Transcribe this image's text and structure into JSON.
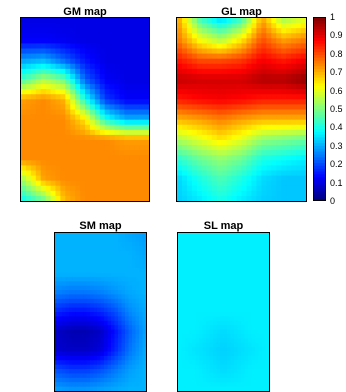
{
  "chart_data": [
    {
      "type": "heatmap",
      "title": "GM map",
      "colormap": "jet",
      "clim": [
        0,
        1
      ],
      "grid_rows": 10,
      "grid_cols": 7,
      "values": [
        [
          0.1,
          0.1,
          0.1,
          0.1,
          0.1,
          0.1,
          0.1
        ],
        [
          0.12,
          0.12,
          0.11,
          0.1,
          0.1,
          0.1,
          0.1
        ],
        [
          0.28,
          0.3,
          0.22,
          0.14,
          0.1,
          0.1,
          0.1
        ],
        [
          0.45,
          0.55,
          0.48,
          0.22,
          0.12,
          0.1,
          0.1
        ],
        [
          0.72,
          0.74,
          0.7,
          0.4,
          0.18,
          0.12,
          0.12
        ],
        [
          0.74,
          0.74,
          0.74,
          0.65,
          0.4,
          0.3,
          0.3
        ],
        [
          0.74,
          0.74,
          0.74,
          0.74,
          0.74,
          0.72,
          0.72
        ],
        [
          0.74,
          0.74,
          0.74,
          0.74,
          0.74,
          0.74,
          0.74
        ],
        [
          0.55,
          0.72,
          0.74,
          0.74,
          0.74,
          0.74,
          0.74
        ],
        [
          0.4,
          0.5,
          0.7,
          0.74,
          0.74,
          0.74,
          0.74
        ]
      ]
    },
    {
      "type": "heatmap",
      "title": "GL map",
      "colormap": "jet",
      "clim": [
        0,
        1
      ],
      "grid_rows": 10,
      "grid_cols": 7,
      "values": [
        [
          0.7,
          0.45,
          0.35,
          0.45,
          0.72,
          0.55,
          0.6
        ],
        [
          0.75,
          0.62,
          0.55,
          0.65,
          0.8,
          0.72,
          0.75
        ],
        [
          0.85,
          0.8,
          0.8,
          0.82,
          0.88,
          0.85,
          0.88
        ],
        [
          0.93,
          0.92,
          0.92,
          0.92,
          0.95,
          0.95,
          0.98
        ],
        [
          0.85,
          0.87,
          0.88,
          0.87,
          0.85,
          0.85,
          0.85
        ],
        [
          0.7,
          0.72,
          0.75,
          0.72,
          0.7,
          0.7,
          0.7
        ],
        [
          0.55,
          0.6,
          0.65,
          0.6,
          0.52,
          0.5,
          0.48
        ],
        [
          0.42,
          0.48,
          0.52,
          0.48,
          0.4,
          0.38,
          0.36
        ],
        [
          0.34,
          0.4,
          0.45,
          0.4,
          0.34,
          0.32,
          0.32
        ],
        [
          0.33,
          0.36,
          0.4,
          0.36,
          0.33,
          0.32,
          0.32
        ]
      ]
    },
    {
      "type": "heatmap",
      "title": "SM map",
      "colormap": "jet",
      "clim": [
        0,
        1
      ],
      "grid_rows": 9,
      "grid_cols": 7,
      "values": [
        [
          0.3,
          0.3,
          0.3,
          0.3,
          0.3,
          0.29,
          0.28
        ],
        [
          0.3,
          0.3,
          0.3,
          0.3,
          0.3,
          0.3,
          0.29
        ],
        [
          0.3,
          0.3,
          0.3,
          0.3,
          0.3,
          0.3,
          0.3
        ],
        [
          0.25,
          0.24,
          0.24,
          0.25,
          0.27,
          0.29,
          0.3
        ],
        [
          0.16,
          0.14,
          0.14,
          0.16,
          0.2,
          0.26,
          0.29
        ],
        [
          0.07,
          0.05,
          0.05,
          0.07,
          0.14,
          0.22,
          0.28
        ],
        [
          0.08,
          0.07,
          0.07,
          0.09,
          0.16,
          0.24,
          0.29
        ],
        [
          0.2,
          0.18,
          0.18,
          0.2,
          0.24,
          0.28,
          0.3
        ],
        [
          0.28,
          0.27,
          0.27,
          0.28,
          0.29,
          0.3,
          0.3
        ]
      ]
    },
    {
      "type": "heatmap",
      "title": "SL map",
      "colormap": "jet",
      "clim": [
        0,
        1
      ],
      "grid_rows": 9,
      "grid_cols": 7,
      "values": [
        [
          0.36,
          0.36,
          0.36,
          0.36,
          0.36,
          0.36,
          0.36
        ],
        [
          0.36,
          0.36,
          0.36,
          0.36,
          0.36,
          0.36,
          0.36
        ],
        [
          0.36,
          0.36,
          0.36,
          0.36,
          0.36,
          0.36,
          0.36
        ],
        [
          0.36,
          0.36,
          0.36,
          0.36,
          0.36,
          0.36,
          0.36
        ],
        [
          0.36,
          0.36,
          0.36,
          0.36,
          0.36,
          0.36,
          0.36
        ],
        [
          0.36,
          0.36,
          0.35,
          0.34,
          0.35,
          0.36,
          0.36
        ],
        [
          0.36,
          0.35,
          0.34,
          0.33,
          0.34,
          0.35,
          0.36
        ],
        [
          0.36,
          0.36,
          0.35,
          0.34,
          0.35,
          0.36,
          0.36
        ],
        [
          0.36,
          0.36,
          0.36,
          0.36,
          0.36,
          0.36,
          0.36
        ]
      ]
    }
  ],
  "colorbar": {
    "ticks": [
      "1",
      "0.9",
      "0.8",
      "0.7",
      "0.6",
      "0.5",
      "0.4",
      "0.3",
      "0.2",
      "0.1",
      "0"
    ]
  }
}
